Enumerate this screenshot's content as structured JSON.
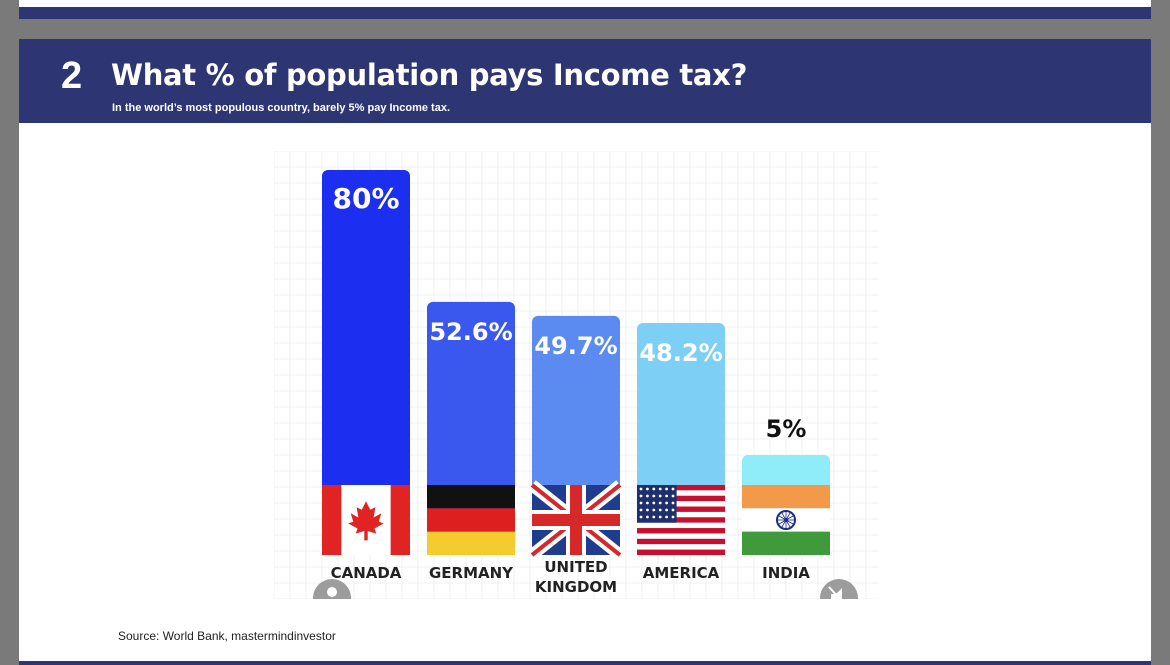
{
  "section_number": "2",
  "title": "What % of population pays Income tax?",
  "subtitle": "In the world’s most populous country, barely 5% pay Income tax.",
  "source": "Source: World Bank, mastermindinvestor",
  "chart_data": {
    "type": "bar",
    "categories": [
      "CANADA",
      "GERMANY",
      "UNITED KINGDOM",
      "AMERICA",
      "INDIA"
    ],
    "category_lines": [
      [
        "CANADA"
      ],
      [
        "GERMANY"
      ],
      [
        "UNITED",
        "KINGDOM"
      ],
      [
        "AMERICA"
      ],
      [
        "INDIA"
      ]
    ],
    "values": [
      80,
      52.6,
      49.7,
      48.2,
      5
    ],
    "value_labels": [
      "80%",
      "52.6%",
      "49.7%",
      "48.2%",
      "5%"
    ],
    "ylim": [
      0,
      100
    ],
    "colors": [
      "#1c2ff0",
      "#3a58ee",
      "#5b8bf0",
      "#7ecff5",
      "#8eedf8"
    ],
    "flags": [
      "canada-flag",
      "germany-flag",
      "uk-flag",
      "usa-flag",
      "india-flag"
    ],
    "grid": true
  }
}
